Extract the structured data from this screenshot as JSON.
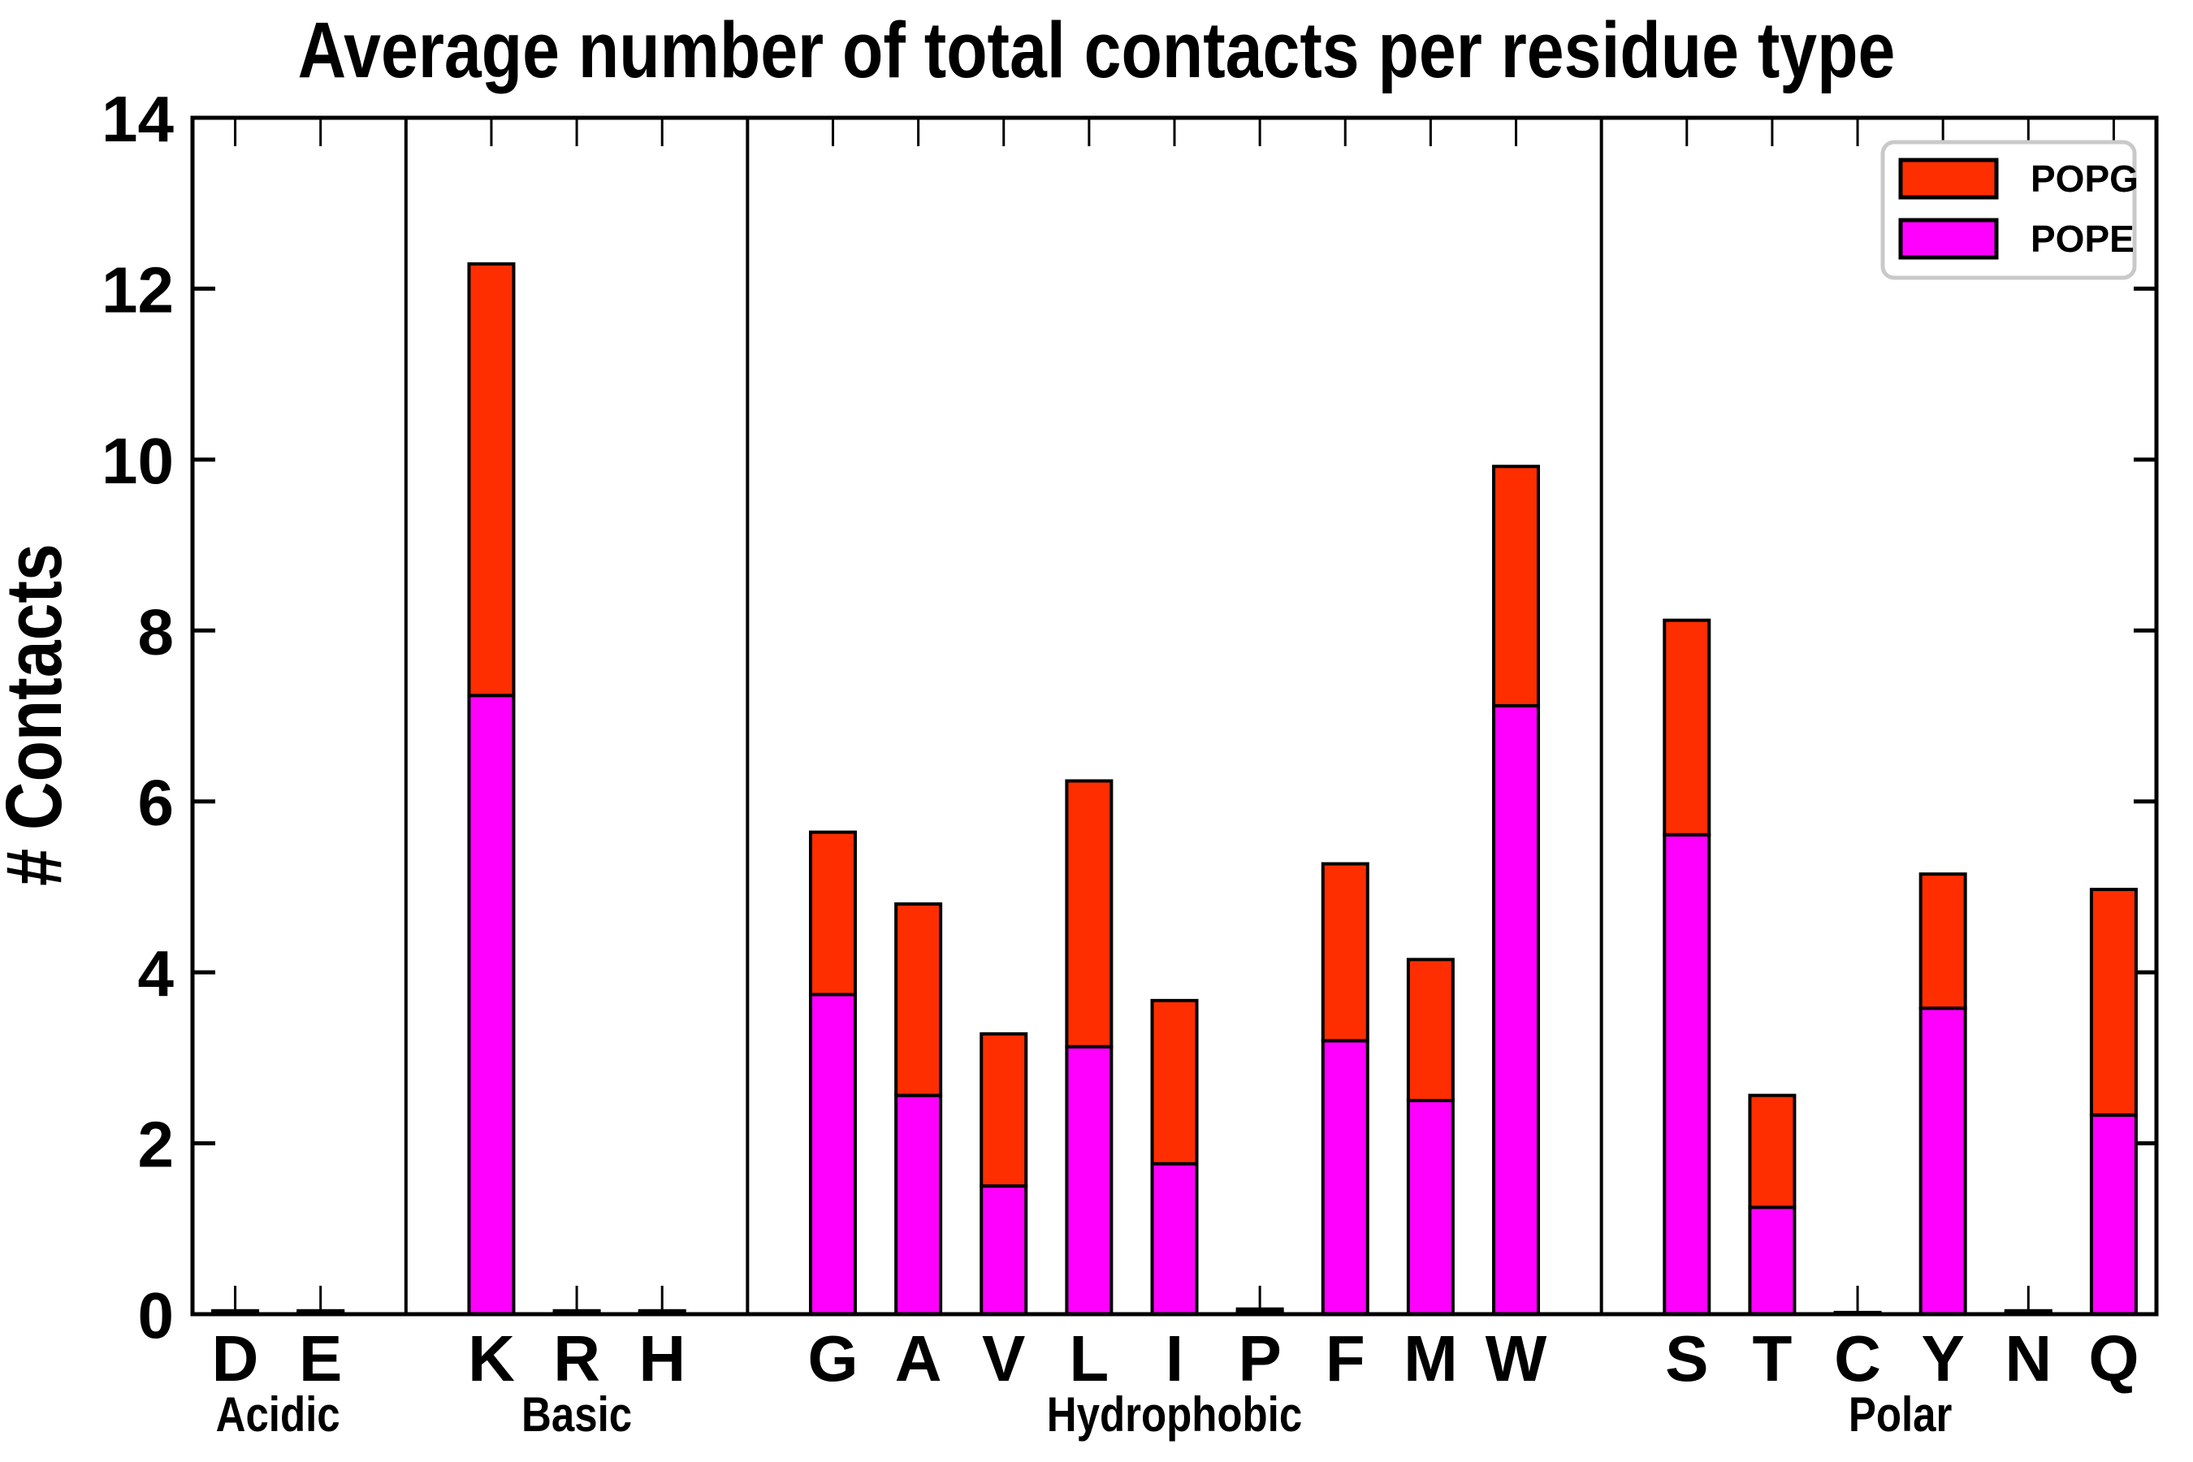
{
  "chart_data": {
    "type": "bar",
    "stacked": true,
    "title": "Average number of total contacts per residue type",
    "ylabel": "# Contacts",
    "xlabel": "",
    "ylim": [
      0,
      14
    ],
    "yticks": [
      0,
      2,
      4,
      6,
      8,
      10,
      12,
      14
    ],
    "grid": false,
    "legend_position": "top-right",
    "categories": [
      "D",
      "E",
      "K",
      "R",
      "H",
      "G",
      "A",
      "V",
      "L",
      "I",
      "P",
      "F",
      "M",
      "W",
      "S",
      "T",
      "C",
      "Y",
      "N",
      "Q"
    ],
    "groups": [
      {
        "label": "Acidic",
        "categories": [
          "D",
          "E"
        ]
      },
      {
        "label": "Basic",
        "categories": [
          "K",
          "R",
          "H"
        ]
      },
      {
        "label": "Hydrophobic",
        "categories": [
          "G",
          "A",
          "V",
          "L",
          "I",
          "P",
          "F",
          "M",
          "W"
        ]
      },
      {
        "label": "Polar",
        "categories": [
          "S",
          "T",
          "C",
          "Y",
          "N",
          "Q"
        ]
      }
    ],
    "series": [
      {
        "name": "POPE",
        "color": "#ff00ff",
        "values": [
          0.02,
          0.02,
          7.24,
          0.02,
          0.02,
          3.74,
          2.56,
          1.5,
          3.13,
          1.76,
          0.03,
          3.2,
          2.5,
          7.12,
          5.61,
          1.25,
          0.01,
          3.58,
          0.02,
          2.33
        ]
      },
      {
        "name": "POPG",
        "color": "#ff2e00",
        "values": [
          0.02,
          0.02,
          5.05,
          0.02,
          0.02,
          1.9,
          2.24,
          1.78,
          3.11,
          1.91,
          0.03,
          2.07,
          1.65,
          2.8,
          2.51,
          1.31,
          0.01,
          1.57,
          0.02,
          2.64
        ]
      }
    ],
    "totals": [
      0.04,
      0.04,
      12.29,
      0.04,
      0.04,
      5.64,
      4.8,
      3.28,
      6.24,
      3.67,
      0.06,
      5.27,
      4.15,
      9.92,
      8.12,
      2.56,
      0.02,
      5.15,
      0.04,
      4.97
    ],
    "bar_edge_color": "#000000",
    "axis_color": "#000000",
    "legend_border_color": "#c9c9c9"
  }
}
